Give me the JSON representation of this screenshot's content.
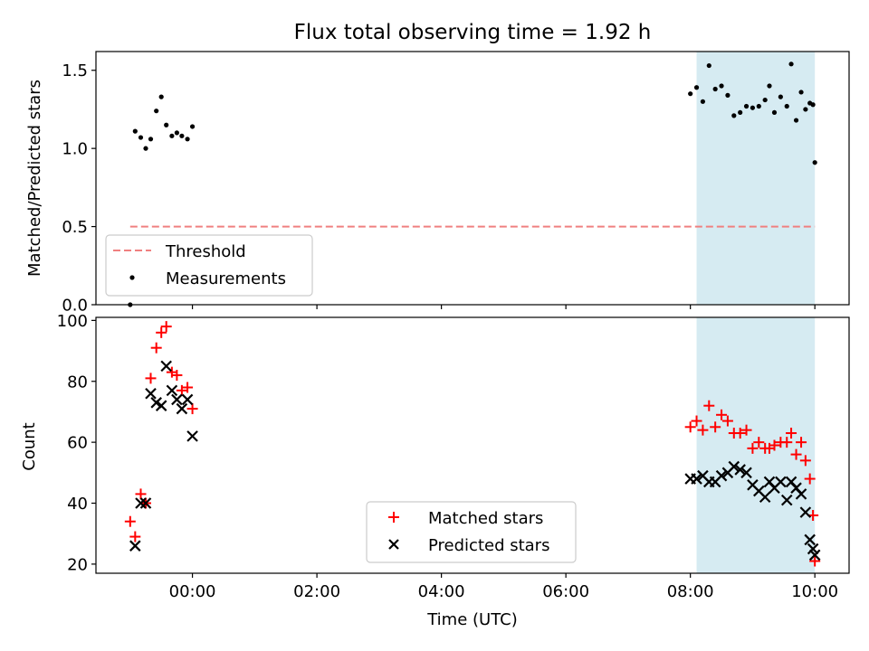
{
  "chart_data": [
    {
      "type": "scatter",
      "title": "Flux total observing time = 1.92 h",
      "ylabel": "Matched/Predicted stars",
      "xlabel": "",
      "ylim": [
        0,
        1.62
      ],
      "yticks": [
        0.0,
        0.5,
        1.0,
        1.5
      ],
      "yticklabels": [
        "0.0",
        "0.5",
        "1.0",
        "1.5"
      ],
      "x_unit": "hours_utc_relative_to_00:00",
      "xlim": [
        -1.55,
        10.55
      ],
      "highlight_span": {
        "x_start": 8.1,
        "x_end": 10.0,
        "color": "#add8e6"
      },
      "threshold": {
        "name": "Threshold",
        "y": 0.5,
        "x_start": -1.0,
        "x_end": 10.0,
        "color": "#f08080"
      },
      "legend": {
        "location": "lower-left",
        "entries": [
          "Threshold",
          "Measurements"
        ]
      },
      "series": [
        {
          "name": "Measurements",
          "color": "#000000",
          "points": [
            [
              -1.0,
              0.0
            ],
            [
              -0.92,
              1.11
            ],
            [
              -0.83,
              1.07
            ],
            [
              -0.75,
              1.0
            ],
            [
              -0.67,
              1.06
            ],
            [
              -0.58,
              1.24
            ],
            [
              -0.5,
              1.33
            ],
            [
              -0.42,
              1.15
            ],
            [
              -0.33,
              1.08
            ],
            [
              -0.25,
              1.1
            ],
            [
              -0.17,
              1.08
            ],
            [
              -0.08,
              1.06
            ],
            [
              0.0,
              1.14
            ],
            [
              8.0,
              1.35
            ],
            [
              8.1,
              1.39
            ],
            [
              8.2,
              1.3
            ],
            [
              8.3,
              1.53
            ],
            [
              8.4,
              1.38
            ],
            [
              8.5,
              1.4
            ],
            [
              8.6,
              1.34
            ],
            [
              8.7,
              1.21
            ],
            [
              8.8,
              1.23
            ],
            [
              8.9,
              1.27
            ],
            [
              9.0,
              1.26
            ],
            [
              9.1,
              1.27
            ],
            [
              9.2,
              1.31
            ],
            [
              9.27,
              1.4
            ],
            [
              9.35,
              1.23
            ],
            [
              9.45,
              1.33
            ],
            [
              9.55,
              1.27
            ],
            [
              9.62,
              1.54
            ],
            [
              9.7,
              1.18
            ],
            [
              9.78,
              1.36
            ],
            [
              9.85,
              1.25
            ],
            [
              9.92,
              1.29
            ],
            [
              9.97,
              1.28
            ],
            [
              10.0,
              0.91
            ]
          ]
        }
      ]
    },
    {
      "type": "scatter",
      "title": "",
      "ylabel": "Count",
      "xlabel": "Time (UTC)",
      "ylim": [
        17,
        101
      ],
      "yticks": [
        20,
        40,
        60,
        80,
        100
      ],
      "yticklabels": [
        "20",
        "40",
        "60",
        "80",
        "100"
      ],
      "x_unit": "hours_utc_relative_to_00:00",
      "xlim": [
        -1.55,
        10.55
      ],
      "xticks": [
        0,
        2,
        4,
        6,
        8,
        10
      ],
      "xticklabels": [
        "00:00",
        "02:00",
        "04:00",
        "06:00",
        "08:00",
        "10:00"
      ],
      "highlight_span": {
        "x_start": 8.1,
        "x_end": 10.0,
        "color": "#add8e6"
      },
      "legend": {
        "location": "lower-center",
        "entries": [
          "Matched stars",
          "Predicted stars"
        ]
      },
      "series": [
        {
          "name": "Matched stars",
          "marker": "plus",
          "color": "#ff0000",
          "points": [
            [
              -1.0,
              34
            ],
            [
              -0.92,
              29
            ],
            [
              -0.83,
              43
            ],
            [
              -0.75,
              40
            ],
            [
              -0.67,
              81
            ],
            [
              -0.58,
              91
            ],
            [
              -0.5,
              96
            ],
            [
              -0.42,
              98
            ],
            [
              -0.33,
              83
            ],
            [
              -0.25,
              82
            ],
            [
              -0.17,
              77
            ],
            [
              -0.08,
              78
            ],
            [
              0.0,
              71
            ],
            [
              8.0,
              65
            ],
            [
              8.1,
              67
            ],
            [
              8.2,
              64
            ],
            [
              8.3,
              72
            ],
            [
              8.4,
              65
            ],
            [
              8.5,
              69
            ],
            [
              8.6,
              67
            ],
            [
              8.7,
              63
            ],
            [
              8.8,
              63
            ],
            [
              8.9,
              64
            ],
            [
              9.0,
              58
            ],
            [
              9.1,
              60
            ],
            [
              9.2,
              58
            ],
            [
              9.27,
              58
            ],
            [
              9.35,
              59
            ],
            [
              9.45,
              60
            ],
            [
              9.55,
              60
            ],
            [
              9.62,
              63
            ],
            [
              9.7,
              56
            ],
            [
              9.78,
              60
            ],
            [
              9.85,
              54
            ],
            [
              9.92,
              48
            ],
            [
              9.97,
              36
            ],
            [
              10.0,
              21
            ]
          ]
        },
        {
          "name": "Predicted stars",
          "marker": "x",
          "color": "#000000",
          "points": [
            [
              -0.92,
              26
            ],
            [
              -0.83,
              40
            ],
            [
              -0.75,
              40
            ],
            [
              -0.67,
              76
            ],
            [
              -0.58,
              73
            ],
            [
              -0.5,
              72
            ],
            [
              -0.42,
              85
            ],
            [
              -0.33,
              77
            ],
            [
              -0.25,
              74
            ],
            [
              -0.17,
              71
            ],
            [
              -0.08,
              74
            ],
            [
              0.0,
              62
            ],
            [
              8.0,
              48
            ],
            [
              8.1,
              48
            ],
            [
              8.2,
              49
            ],
            [
              8.3,
              47
            ],
            [
              8.4,
              47
            ],
            [
              8.5,
              49
            ],
            [
              8.6,
              50
            ],
            [
              8.7,
              52
            ],
            [
              8.8,
              51
            ],
            [
              8.9,
              50
            ],
            [
              9.0,
              46
            ],
            [
              9.1,
              44
            ],
            [
              9.2,
              42
            ],
            [
              9.27,
              47
            ],
            [
              9.35,
              45
            ],
            [
              9.45,
              47
            ],
            [
              9.55,
              41
            ],
            [
              9.62,
              47
            ],
            [
              9.7,
              45
            ],
            [
              9.78,
              43
            ],
            [
              9.85,
              37
            ],
            [
              9.92,
              28
            ],
            [
              9.97,
              25
            ],
            [
              10.0,
              23
            ]
          ]
        }
      ]
    }
  ]
}
